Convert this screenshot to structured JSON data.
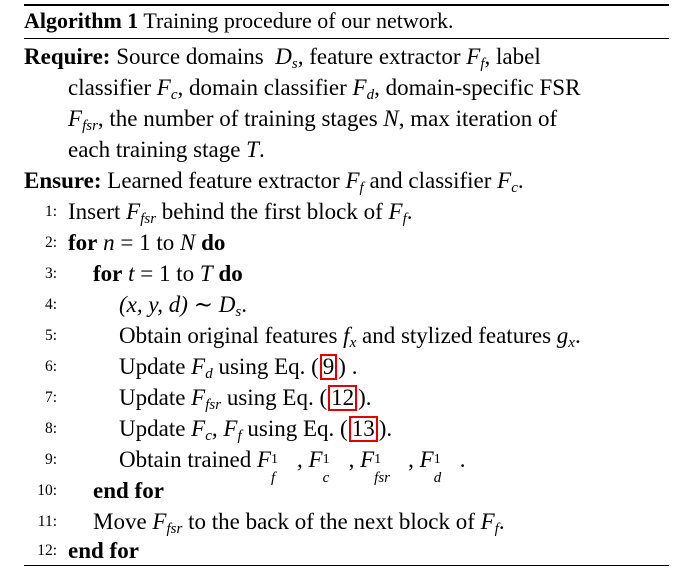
{
  "caption": {
    "label": "Algorithm 1",
    "text": "Training procedure of our network."
  },
  "require": {
    "label": "Require:",
    "line1": "Source domains",
    "line1b": ", feature extractor",
    "line1c": ", label",
    "line2": "classifier",
    "line2b": ", domain classifier",
    "line2c": ", domain-specific FSR",
    "line3": ", the number of training stages",
    "line3b": ", max iteration of",
    "line4": "each training stage",
    "line4b": "."
  },
  "ensure": {
    "label": "Ensure:",
    "text": "Learned feature extractor",
    "textb": "and classifier",
    "textc": "."
  },
  "steps": [
    {
      "num": "1:",
      "a": "Insert",
      "b": "behind the first block of",
      "c": "."
    },
    {
      "num": "2:",
      "kw1": "for",
      "a": "= 1 to",
      "kw2": "do"
    },
    {
      "num": "3:",
      "kw1": "for",
      "a": "= 1 to",
      "kw2": "do"
    },
    {
      "num": "4:",
      "a": "(x, y, d) ∼ D",
      "b": "s",
      "c": "."
    },
    {
      "num": "5:",
      "a": "Obtain original features",
      "b": "and stylized features",
      "c": "."
    },
    {
      "num": "6:",
      "a": "Update",
      "b": "using Eq. (",
      "ref": "9",
      "c": ") ."
    },
    {
      "num": "7:",
      "a": "Update",
      "b": "using Eq. (",
      "ref": "12",
      "c": ")."
    },
    {
      "num": "8:",
      "a": "Update",
      "b": "using Eq. (",
      "ref": "13",
      "c": ")."
    },
    {
      "num": "9:",
      "a": "Obtain trained",
      "c": "."
    },
    {
      "num": "10:",
      "kw1": "end for"
    },
    {
      "num": "11:",
      "a": "Move",
      "b": "to the back of the next block of",
      "c": "."
    },
    {
      "num": "12:",
      "kw1": "end for"
    }
  ],
  "colors": {
    "ref_box": "#e00000",
    "text": "#000000"
  }
}
